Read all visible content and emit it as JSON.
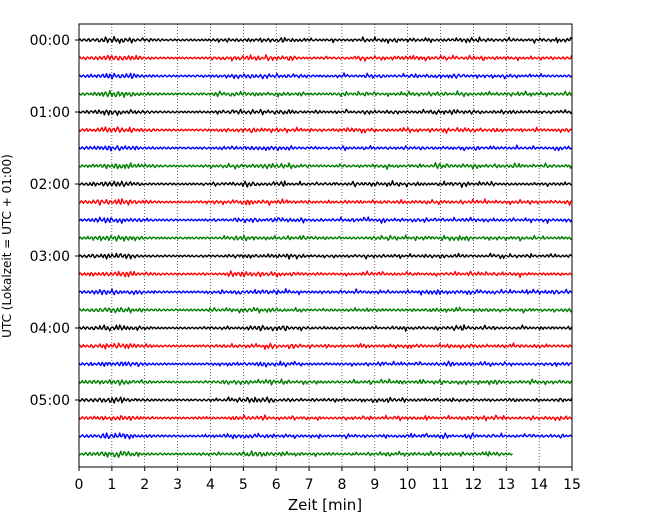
{
  "chart_data": {
    "type": "line",
    "title": "",
    "xlabel": "Zeit  [min]",
    "ylabel": "UTC (Lokalzeit = UTC + 01:00)",
    "xlim": [
      0,
      15
    ],
    "x_ticks": [
      "0",
      "1",
      "2",
      "3",
      "4",
      "5",
      "6",
      "7",
      "8",
      "9",
      "10",
      "11",
      "12",
      "13",
      "14",
      "15"
    ],
    "y_ticks": [
      "00:00",
      "01:00",
      "02:00",
      "03:00",
      "04:00",
      "05:00"
    ],
    "traces_per_hour": 4,
    "minutes_per_trace": 15,
    "trace_colors": [
      "#000000",
      "#ff0000",
      "#0000ff",
      "#008000"
    ],
    "vertical_grid": "dotted",
    "series": [
      {
        "start": "00:00",
        "end_minute": 15
      },
      {
        "start": "00:15",
        "end_minute": 15
      },
      {
        "start": "00:30",
        "end_minute": 15
      },
      {
        "start": "00:45",
        "end_minute": 15
      },
      {
        "start": "01:00",
        "end_minute": 15
      },
      {
        "start": "01:15",
        "end_minute": 15
      },
      {
        "start": "01:30",
        "end_minute": 15
      },
      {
        "start": "01:45",
        "end_minute": 15
      },
      {
        "start": "02:00",
        "end_minute": 15
      },
      {
        "start": "02:15",
        "end_minute": 15
      },
      {
        "start": "02:30",
        "end_minute": 15
      },
      {
        "start": "02:45",
        "end_minute": 15
      },
      {
        "start": "03:00",
        "end_minute": 15
      },
      {
        "start": "03:15",
        "end_minute": 15
      },
      {
        "start": "03:30",
        "end_minute": 15
      },
      {
        "start": "03:45",
        "end_minute": 15
      },
      {
        "start": "04:00",
        "end_minute": 15
      },
      {
        "start": "04:15",
        "end_minute": 15
      },
      {
        "start": "04:30",
        "end_minute": 15
      },
      {
        "start": "04:45",
        "end_minute": 15
      },
      {
        "start": "05:00",
        "end_minute": 15
      },
      {
        "start": "05:15",
        "end_minute": 15
      },
      {
        "start": "05:30",
        "end_minute": 15
      },
      {
        "start": "05:45",
        "end_minute": 13.2
      }
    ]
  }
}
